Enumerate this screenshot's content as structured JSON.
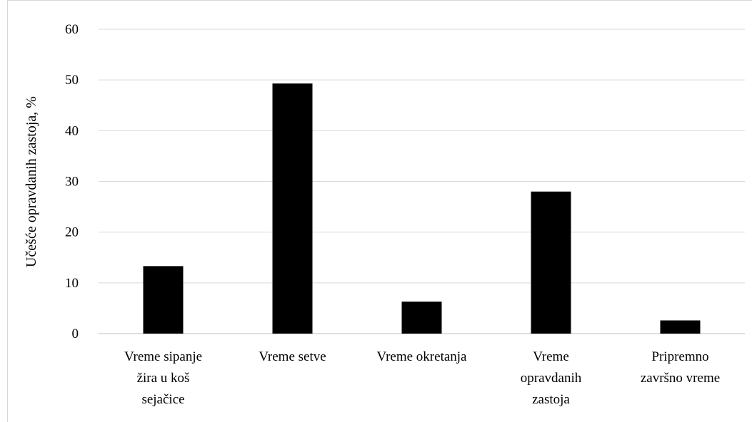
{
  "chart_data": {
    "type": "bar",
    "title": "",
    "xlabel": "",
    "ylabel": "Učešće opravdanih zastoja, %",
    "ylim": [
      0,
      60
    ],
    "yticks": [
      0,
      10,
      20,
      30,
      40,
      50,
      60
    ],
    "grid": true,
    "legend": "none",
    "bar_color": "#000000",
    "categories": [
      [
        "Vreme sipanje",
        "žira u koš",
        "sejačice"
      ],
      [
        "Vreme setve"
      ],
      [
        "Vreme okretanja"
      ],
      [
        "Vreme",
        "opravdanih",
        "zastoja"
      ],
      [
        "Pripremno",
        "završno vreme"
      ]
    ],
    "values": [
      13.3,
      49.3,
      6.3,
      28.0,
      2.6
    ]
  }
}
